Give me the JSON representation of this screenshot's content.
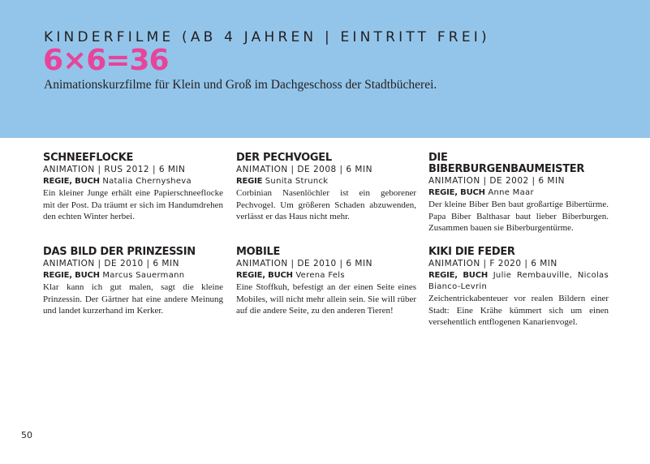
{
  "header": {
    "kicker": "KINDERFILME (AB 4 JAHREN | EINTRITT FREI)",
    "headline": "6×6=36",
    "subtitle": "Animationskurzfilme für Klein und Groß im Dachgeschoss der Stadtbücherei."
  },
  "colors": {
    "header_bg": "#93c5ea",
    "accent": "#e8449a"
  },
  "films": [
    {
      "title": "Schneeflocke",
      "meta": "ANIMATION | RUS 2012 | 6 MIN",
      "credit_label": "REGIE, BUCH",
      "credit_name": "Natalia Chernysheva",
      "description": "Ein kleiner Junge erhält eine Papierschneeflocke mit der Post. Da träumt er sich im Handumdrehen den echten Winter herbei."
    },
    {
      "title": "Der Pechvogel",
      "meta": "ANIMATION | DE 2008 | 6 MIN",
      "credit_label": "REGIE",
      "credit_name": "Sunita Strunck",
      "description": "Corbinian Nasenlöchler ist ein geborener Pechvogel. Um größeren Schaden abzuwenden, verlässt er das Haus nicht mehr."
    },
    {
      "title": "Die Biberburgenbaumeister",
      "meta": "ANIMATION | DE 2002 | 6 MIN",
      "credit_label": "REGIE, BUCH",
      "credit_name": "Anne Maar",
      "description": "Der kleine Biber Ben baut großartige Bibertürme. Papa Biber Balthasar baut lieber Biberburgen. Zusammen bauen sie Biberburgentürme."
    },
    {
      "title": "Das Bild der Prinzessin",
      "meta": "ANIMATION | DE 2010 | 6 MIN",
      "credit_label": "REGIE, BUCH",
      "credit_name": "Marcus Sauermann",
      "description": "Klar kann ich gut malen, sagt die kleine Prinzessin. Der Gärtner hat eine andere Meinung und landet kurzerhand im Kerker."
    },
    {
      "title": "Mobile",
      "meta": "ANIMATION | DE 2010 | 6 MIN",
      "credit_label": "REGIE, BUCH",
      "credit_name": "Verena Fels",
      "description": "Eine Stoffkuh, befestigt an der einen Seite eines Mobiles, will nicht mehr allein sein. Sie will rüber auf die andere Seite, zu den anderen Tieren!"
    },
    {
      "title": "Kiki die Feder",
      "meta": "ANIMATION | F 2020 | 6 MIN",
      "credit_label": "REGIE, BUCH",
      "credit_name": "Julie Rembauville, Nicolas Bianco-Levrin",
      "description": "Zeichentrickabenteuer vor realen Bildern einer Stadt: Eine Krähe kümmert sich um einen versehentlich entflogenen Kanarienvogel."
    }
  ],
  "page_number": "50"
}
